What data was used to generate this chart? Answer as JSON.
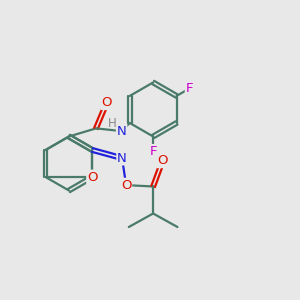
{
  "background_color": "#e8e8e8",
  "bond_color": "#4a7a6a",
  "bond_width": 1.6,
  "atom_colors": {
    "O": "#dd1100",
    "N": "#2222dd",
    "F": "#cc00cc",
    "H": "#888888",
    "C": "#4a7a6a"
  },
  "font_size": 9.5,
  "fig_size": [
    3.0,
    3.0
  ],
  "dpi": 100
}
